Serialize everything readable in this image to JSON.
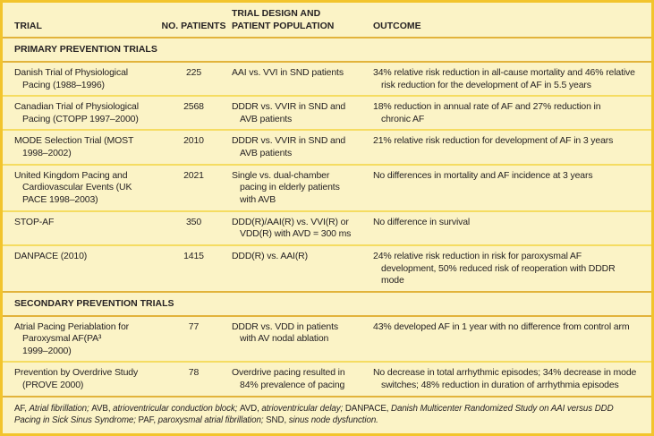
{
  "header": {
    "trial": "TRIAL",
    "patients": "NO. PATIENTS",
    "design": "TRIAL DESIGN AND\nPATIENT POPULATION",
    "outcome": "OUTCOME"
  },
  "colors": {
    "background": "#fbf3c6",
    "outer_border": "#f2c42c",
    "heavy_rule": "#e2b33b",
    "light_rule": "#f5dc61",
    "text": "#262223"
  },
  "sections": [
    {
      "label": "PRIMARY PREVENTION TRIALS",
      "rows": [
        {
          "trial": "Danish Trial of Physiological\nPacing (1988–1996)",
          "patients": "225",
          "design": "AAI vs. VVI in SND patients",
          "outcome": "34% relative risk reduction in all-cause mortality and 46% relative\nrisk reduction for the development of AF in 5.5 years"
        },
        {
          "trial": "Canadian Trial of Physiological\nPacing (CTOPP 1997–2000)",
          "patients": "2568",
          "design": "DDDR vs. VVIR in SND and\nAVB patients",
          "outcome": "18% reduction in annual rate of AF and 27% reduction in\nchronic AF"
        },
        {
          "trial": "MODE Selection Trial (MOST\n1998–2002)",
          "patients": "2010",
          "design": "DDDR vs. VVIR in SND and\nAVB patients",
          "outcome": "21% relative risk reduction for development of AF in 3 years"
        },
        {
          "trial": "United Kingdom Pacing and\nCardiovascular Events (UK\nPACE 1998–2003)",
          "patients": "2021",
          "design": "Single vs. dual-chamber\npacing in elderly patients\nwith AVB",
          "outcome": "No differences in mortality and AF incidence at 3 years"
        },
        {
          "trial": "STOP-AF",
          "patients": "350",
          "design": "DDD(R)/AAI(R) vs. VVI(R) or\nVDD(R) with AVD = 300 ms",
          "outcome": "No difference in survival"
        },
        {
          "trial": "DANPACE (2010)",
          "patients": "1415",
          "design": "DDD(R) vs. AAI(R)",
          "outcome": "24% relative risk reduction in risk for paroxysmal AF\ndevelopment, 50% reduced risk of reoperation with DDDR\nmode"
        }
      ]
    },
    {
      "label": "SECONDARY PREVENTION TRIALS",
      "rows": [
        {
          "trial": "Atrial Pacing Periablation for\nParoxysmal AF(PA³\n1999–2000)",
          "patients": "77",
          "design": "DDDR vs. VDD in patients\nwith AV nodal ablation",
          "outcome": "43% developed AF in 1 year with no difference from control arm"
        },
        {
          "trial": "Prevention by Overdrive Study\n(PROVE 2000)",
          "patients": "78",
          "design": "Overdrive pacing resulted in\n84% prevalence of pacing",
          "outcome": "No decrease in total arrhythmic episodes; 34% decrease in mode\nswitches; 48% reduction in duration of arrhythmia episodes"
        }
      ]
    }
  ],
  "footnote": {
    "segments": [
      {
        "abbr": "AF, ",
        "def": "Atrial fibrillation; "
      },
      {
        "abbr": "AVB, ",
        "def": "atrioventricular conduction block; "
      },
      {
        "abbr": "AVD, ",
        "def": "atrioventricular delay; "
      },
      {
        "abbr": "DANPACE, ",
        "def": "Danish Multicenter Randomized Study on AAI versus DDD Pacing in Sick Sinus Syndrome; "
      },
      {
        "abbr": "PAF, ",
        "def": "paroxysmal atrial fibrillation; "
      },
      {
        "abbr": "SND, ",
        "def": "sinus node dysfunction."
      }
    ]
  }
}
